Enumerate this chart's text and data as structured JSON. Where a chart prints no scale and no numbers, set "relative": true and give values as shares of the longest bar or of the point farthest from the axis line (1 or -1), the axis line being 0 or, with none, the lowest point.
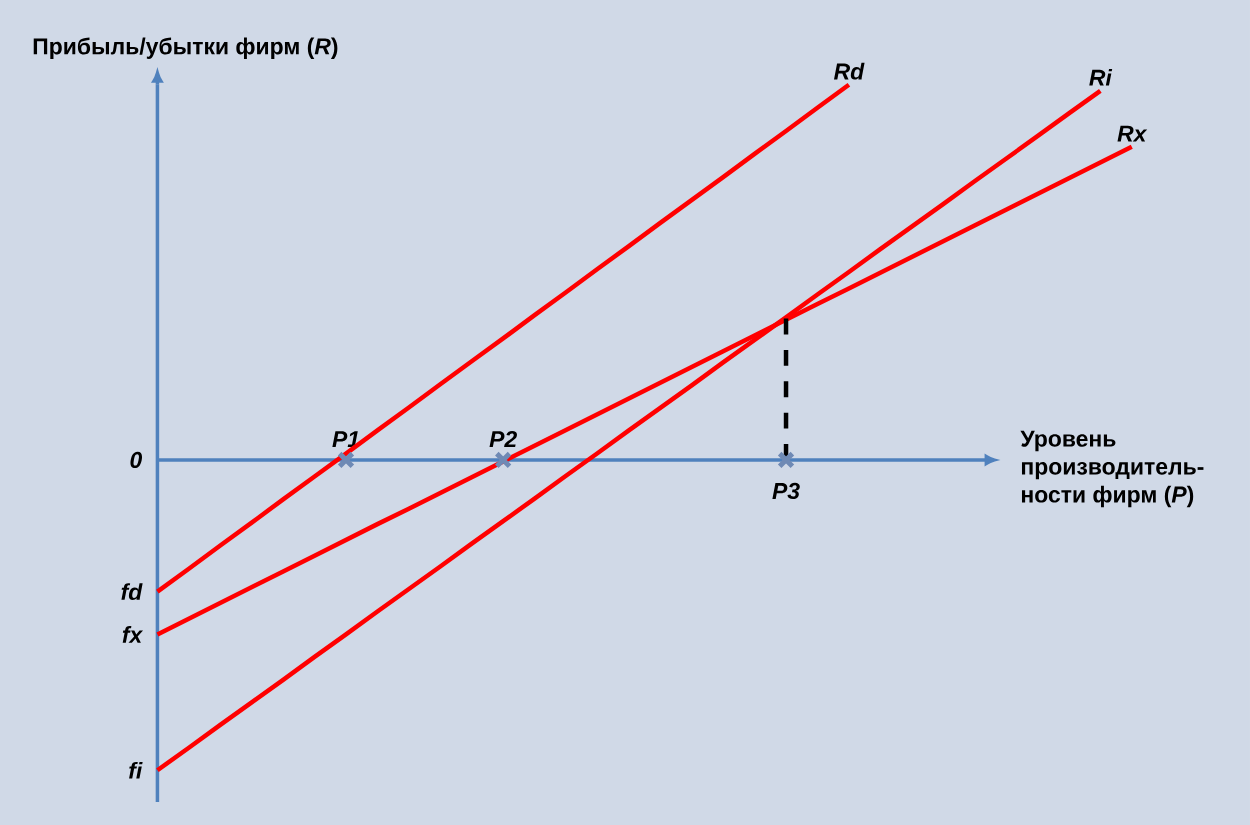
{
  "chart_data": {
    "type": "line",
    "relative": true,
    "xlabel": "Уровень производитель-ности фирм (*P*)",
    "ylabel": "Прибыль/убытки фирм (*R*)",
    "categories": [
      null,
      null,
      null,
      null,
      null,
      null,
      "P1",
      null,
      null,
      null,
      null,
      "P2",
      null,
      null,
      null,
      null,
      null,
      null,
      null,
      null,
      "P3",
      null,
      null,
      null,
      null,
      null,
      null,
      null,
      null,
      null,
      null,
      null
    ],
    "series": [
      {
        "name": "Rd",
        "color": "#ff0000",
        "values": [
          -0.351,
          -0.29,
          -0.228,
          -0.167,
          -0.105,
          -0.044,
          0.017,
          0.079,
          0.14,
          0.202,
          0.263,
          0.324,
          0.386,
          0.447,
          0.509,
          0.57,
          0.632,
          0.693,
          0.754,
          0.816,
          0.877,
          0.939,
          1.0,
          null,
          null,
          null,
          null,
          null,
          null,
          null,
          null,
          null
        ]
      },
      {
        "name": "Ri",
        "color": "#ff0000",
        "values": [
          -0.827,
          -0.767,
          -0.706,
          -0.646,
          -0.586,
          -0.525,
          -0.465,
          -0.404,
          -0.344,
          -0.284,
          -0.223,
          -0.163,
          -0.103,
          -0.042,
          0.018,
          0.079,
          0.139,
          0.199,
          0.26,
          0.32,
          0.38,
          0.441,
          0.501,
          0.562,
          0.622,
          0.682,
          0.743,
          0.803,
          0.863,
          0.924,
          0.984,
          null
        ]
      },
      {
        "name": "Rx",
        "color": "#ff0000",
        "values": [
          -0.465,
          -0.423,
          -0.381,
          -0.339,
          -0.297,
          -0.255,
          -0.213,
          -0.171,
          -0.13,
          -0.088,
          -0.046,
          -0.004,
          0.038,
          0.08,
          0.122,
          0.164,
          0.206,
          0.248,
          0.29,
          0.332,
          0.374,
          0.416,
          0.457,
          0.499,
          0.541,
          0.583,
          0.625,
          0.667,
          0.709,
          0.751,
          0.793,
          0.835
        ]
      },
      {
        "type": "line",
        "color": "#000000",
        "line_style": "dashed",
        "x": [
          "P3",
          "P3"
        ],
        "values": [
          0.377,
          0
        ]
      },
      {
        "type": "scatter",
        "color": "#6f8ab5",
        "marker": "cross",
        "values": [
          null,
          null,
          null,
          null,
          null,
          null,
          0,
          null,
          null,
          null,
          null,
          0,
          null,
          null,
          null,
          null,
          null,
          null,
          null,
          null,
          0,
          null,
          null,
          null,
          null,
          null,
          null,
          null,
          null,
          null,
          null,
          null
        ]
      }
    ],
    "annotations": [
      "0",
      "fd",
      "fx",
      "fi"
    ]
  }
}
